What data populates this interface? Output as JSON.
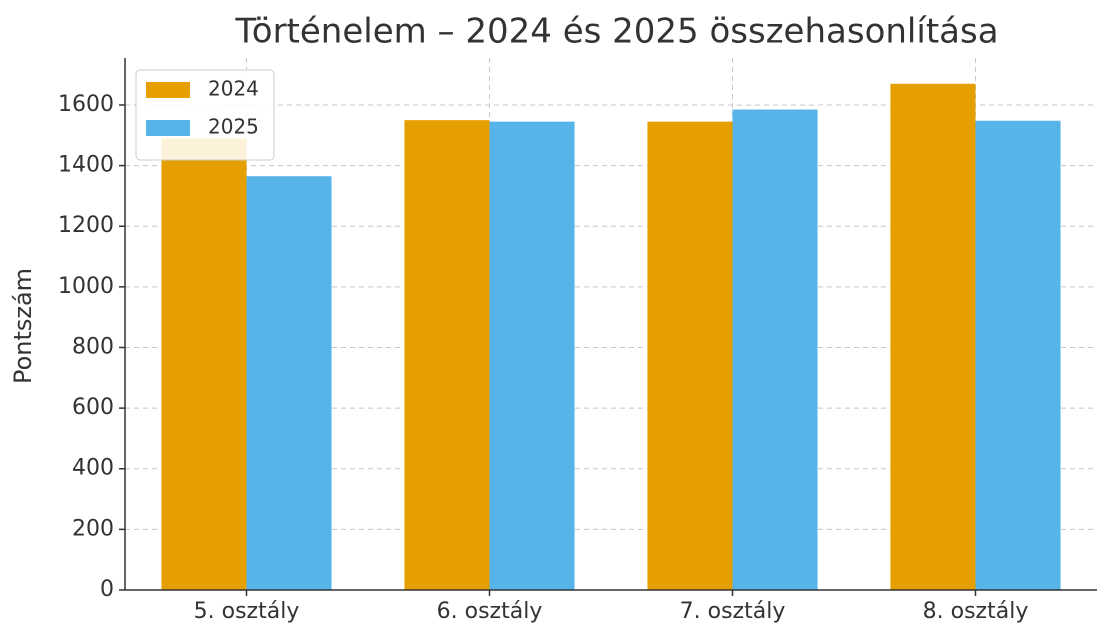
{
  "chart_data": {
    "type": "bar",
    "title": "Történelem – 2024 és 2025 összehasonlítása",
    "y_label": "Pontszám",
    "categories": [
      "5. osztály",
      "6. osztály",
      "7. osztály",
      "8. osztály"
    ],
    "series": [
      {
        "name": "2024",
        "color": "#e69f00",
        "values": [
          1490,
          1550,
          1545,
          1670
        ]
      },
      {
        "name": "2025",
        "color": "#56b4e9",
        "values": [
          1365,
          1545,
          1585,
          1548
        ]
      }
    ],
    "ylim": [
      0,
      1755
    ],
    "yticks": [
      0,
      200,
      400,
      600,
      800,
      1000,
      1200,
      1400,
      1600
    ],
    "grid": true,
    "legend": "upper left"
  }
}
